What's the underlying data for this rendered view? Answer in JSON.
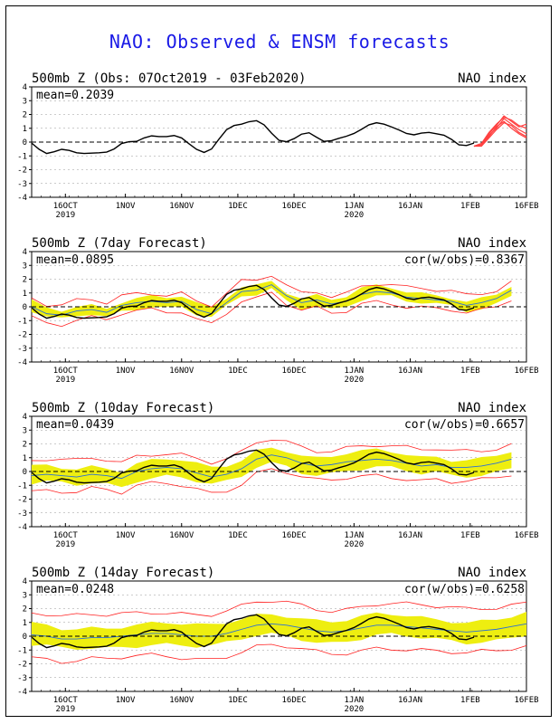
{
  "title": "NAO: Observed & ENSM forecasts",
  "colors": {
    "observed": "#000000",
    "ensemble_spread": "#eeee10",
    "ensemble_mean": "#2a6fd6",
    "ensemble_bounds": "#ff2020",
    "members": "#ff4040"
  },
  "chart_data": [
    {
      "type": "line",
      "panel": "observed",
      "header_left": "500mb Z (Obs: 07Oct2019 - 03Feb2020)",
      "header_right": "NAO index",
      "mean_label": "mean=0.2039",
      "cor_label": "",
      "ylim": [
        -4,
        4
      ],
      "yticks": [
        "4",
        "3",
        "2",
        "1",
        "0",
        "-1",
        "-2",
        "-3",
        "-4"
      ],
      "xlim": [
        0,
        132
      ],
      "xticks": [
        {
          "day": 9,
          "label": "16OCT",
          "sub": "2019"
        },
        {
          "day": 25,
          "label": "1NOV",
          "sub": ""
        },
        {
          "day": 40,
          "label": "16NOV",
          "sub": ""
        },
        {
          "day": 55,
          "label": "1DEC",
          "sub": ""
        },
        {
          "day": 70,
          "label": "16DEC",
          "sub": ""
        },
        {
          "day": 86,
          "label": "1JAN",
          "sub": "2020"
        },
        {
          "day": 101,
          "label": "16JAN",
          "sub": ""
        },
        {
          "day": 117,
          "label": "1FEB",
          "sub": ""
        },
        {
          "day": 132,
          "label": "16FEB",
          "sub": ""
        }
      ],
      "observed": {
        "x": [
          0,
          2,
          4,
          6,
          8,
          10,
          12,
          14,
          16,
          18,
          20,
          22,
          24,
          26,
          28,
          30,
          32,
          34,
          36,
          38,
          40,
          42,
          44,
          46,
          48,
          50,
          52,
          54,
          56,
          58,
          60,
          62,
          64,
          66,
          68,
          70,
          72,
          74,
          76,
          78,
          80,
          82,
          84,
          86,
          88,
          90,
          92,
          94,
          96,
          98,
          100,
          102,
          104,
          106,
          108,
          110,
          112,
          114,
          116,
          118
        ],
        "y": [
          0.1,
          -0.6,
          -1.0,
          -0.7,
          -0.4,
          -0.6,
          -0.8,
          -0.9,
          -0.7,
          -0.9,
          -0.6,
          -0.8,
          0.2,
          0.0,
          -0.1,
          0.4,
          0.5,
          0.4,
          0.3,
          0.6,
          0.4,
          -0.2,
          -0.5,
          -0.9,
          -0.7,
          0.3,
          1.0,
          1.3,
          1.2,
          1.5,
          1.7,
          1.3,
          0.7,
          -0.1,
          0.0,
          0.2,
          0.6,
          0.9,
          0.3,
          -0.1,
          0.1,
          0.3,
          0.4,
          0.6,
          0.9,
          1.3,
          1.5,
          1.3,
          1.1,
          0.9,
          0.6,
          0.4,
          0.7,
          0.8,
          0.5,
          0.6,
          0.3,
          -0.4,
          -0.3,
          0.0
        ]
      },
      "members": [
        {
          "x": [
            118,
            120,
            122,
            124,
            126,
            128,
            130,
            132
          ],
          "y": [
            -0.3,
            -0.2,
            0.5,
            1.0,
            1.7,
            1.3,
            0.9,
            0.6
          ]
        },
        {
          "x": [
            118,
            120,
            122,
            124,
            126,
            128,
            130,
            132
          ],
          "y": [
            -0.3,
            -0.1,
            0.7,
            1.3,
            1.8,
            1.6,
            1.2,
            1.0
          ]
        },
        {
          "x": [
            118,
            120,
            122,
            124,
            126,
            128,
            130,
            132
          ],
          "y": [
            -0.3,
            -0.2,
            0.4,
            1.1,
            1.5,
            1.0,
            0.6,
            0.3
          ]
        },
        {
          "x": [
            118,
            120,
            122,
            124,
            126,
            128,
            130,
            132
          ],
          "y": [
            -0.3,
            -0.3,
            0.3,
            0.9,
            1.4,
            1.2,
            0.7,
            0.4
          ]
        },
        {
          "x": [
            118,
            120,
            122,
            124,
            126,
            128,
            130,
            132
          ],
          "y": [
            -0.3,
            -0.1,
            0.6,
            1.2,
            1.9,
            1.5,
            1.1,
            1.3
          ]
        }
      ]
    },
    {
      "type": "line",
      "panel": "forecast_7day",
      "header_left": "500mb Z (7day Forecast)",
      "header_right": "NAO index",
      "mean_label": "mean=0.0895",
      "cor_label": "cor(w/obs)=0.8367",
      "ylim": [
        -4,
        4
      ],
      "yticks": [
        "4",
        "3",
        "2",
        "1",
        "0",
        "-1",
        "-2",
        "-3",
        "-4"
      ],
      "xlim": [
        0,
        132
      ],
      "xticks": [
        {
          "day": 9,
          "label": "16OCT",
          "sub": "2019"
        },
        {
          "day": 25,
          "label": "1NOV",
          "sub": ""
        },
        {
          "day": 40,
          "label": "16NOV",
          "sub": ""
        },
        {
          "day": 55,
          "label": "1DEC",
          "sub": ""
        },
        {
          "day": 70,
          "label": "16DEC",
          "sub": ""
        },
        {
          "day": 86,
          "label": "1JAN",
          "sub": "2020"
        },
        {
          "day": 101,
          "label": "16JAN",
          "sub": ""
        },
        {
          "day": 117,
          "label": "1FEB",
          "sub": ""
        },
        {
          "day": 132,
          "label": "16FEB",
          "sub": ""
        }
      ],
      "observed_end": 119,
      "forecast": {
        "x": [
          0,
          4,
          8,
          12,
          16,
          20,
          24,
          28,
          32,
          36,
          40,
          44,
          48,
          52,
          56,
          60,
          64,
          68,
          72,
          76,
          80,
          84,
          88,
          92,
          96,
          100,
          104,
          108,
          112,
          116,
          120,
          124,
          128
        ],
        "mean": [
          0.0,
          -0.5,
          -0.6,
          -0.3,
          -0.2,
          -0.4,
          0.1,
          0.3,
          0.4,
          0.3,
          0.4,
          -0.2,
          -0.5,
          0.3,
          1.1,
          1.2,
          1.6,
          0.8,
          0.3,
          0.5,
          0.2,
          0.4,
          0.9,
          1.1,
          1.0,
          0.7,
          0.6,
          0.5,
          0.4,
          0.1,
          0.3,
          0.6,
          1.2
        ],
        "spread": 0.35,
        "bound": 0.65
      }
    },
    {
      "type": "line",
      "panel": "forecast_10day",
      "header_left": "500mb Z (10day Forecast)",
      "header_right": "NAO index",
      "mean_label": "mean=0.0439",
      "cor_label": "cor(w/obs)=0.6657",
      "ylim": [
        -4,
        4
      ],
      "yticks": [
        "4",
        "3",
        "2",
        "1",
        "0",
        "-1",
        "-2",
        "-3",
        "-4"
      ],
      "xlim": [
        0,
        132
      ],
      "xticks": [
        {
          "day": 9,
          "label": "16OCT",
          "sub": "2019"
        },
        {
          "day": 25,
          "label": "1NOV",
          "sub": ""
        },
        {
          "day": 40,
          "label": "16NOV",
          "sub": ""
        },
        {
          "day": 55,
          "label": "1DEC",
          "sub": ""
        },
        {
          "day": 70,
          "label": "16DEC",
          "sub": ""
        },
        {
          "day": 86,
          "label": "1JAN",
          "sub": "2020"
        },
        {
          "day": 101,
          "label": "16JAN",
          "sub": ""
        },
        {
          "day": 117,
          "label": "1FEB",
          "sub": ""
        },
        {
          "day": 132,
          "label": "16FEB",
          "sub": ""
        }
      ],
      "observed_end": 119,
      "forecast": {
        "x": [
          0,
          4,
          8,
          12,
          16,
          20,
          24,
          28,
          32,
          36,
          40,
          44,
          48,
          52,
          56,
          60,
          64,
          68,
          72,
          76,
          80,
          84,
          88,
          92,
          96,
          100,
          104,
          108,
          112,
          116,
          120,
          124,
          128
        ],
        "mean": [
          -0.3,
          -0.2,
          -0.3,
          -0.4,
          -0.2,
          -0.3,
          -0.5,
          0.0,
          0.2,
          0.3,
          0.2,
          -0.1,
          -0.4,
          -0.2,
          0.2,
          0.9,
          1.2,
          1.0,
          0.6,
          0.4,
          0.5,
          0.7,
          0.8,
          0.9,
          0.8,
          0.6,
          0.4,
          0.5,
          0.3,
          0.3,
          0.4,
          0.6,
          0.9
        ],
        "spread": 0.6,
        "bound": 1.1
      }
    },
    {
      "type": "line",
      "panel": "forecast_14day",
      "header_left": "500mb Z (14day Forecast)",
      "header_right": "NAO index",
      "mean_label": "mean=0.0248",
      "cor_label": "cor(w/obs)=0.6258",
      "ylim": [
        -4,
        4
      ],
      "yticks": [
        "4",
        "3",
        "2",
        "1",
        "0",
        "-1",
        "-2",
        "-3",
        "-4"
      ],
      "xlim": [
        0,
        132
      ],
      "xticks": [
        {
          "day": 9,
          "label": "16OCT",
          "sub": "2019"
        },
        {
          "day": 25,
          "label": "1NOV",
          "sub": ""
        },
        {
          "day": 40,
          "label": "16NOV",
          "sub": ""
        },
        {
          "day": 55,
          "label": "1DEC",
          "sub": ""
        },
        {
          "day": 70,
          "label": "16DEC",
          "sub": ""
        },
        {
          "day": 86,
          "label": "1JAN",
          "sub": "2020"
        },
        {
          "day": 101,
          "label": "16JAN",
          "sub": ""
        },
        {
          "day": 117,
          "label": "1FEB",
          "sub": ""
        },
        {
          "day": 132,
          "label": "16FEB",
          "sub": ""
        }
      ],
      "observed_end": 119,
      "forecast": {
        "x": [
          0,
          4,
          8,
          12,
          16,
          20,
          24,
          28,
          32,
          36,
          40,
          44,
          48,
          52,
          56,
          60,
          64,
          68,
          72,
          76,
          80,
          84,
          88,
          92,
          96,
          100,
          104,
          108,
          112,
          116,
          120,
          124,
          128,
          132
        ],
        "mean": [
          0.1,
          0.0,
          -0.2,
          -0.2,
          -0.1,
          -0.1,
          0.0,
          0.1,
          0.2,
          0.2,
          0.1,
          0.0,
          0.0,
          0.2,
          0.5,
          0.8,
          0.9,
          0.8,
          0.6,
          0.4,
          0.3,
          0.4,
          0.6,
          0.8,
          0.8,
          0.7,
          0.6,
          0.5,
          0.4,
          0.3,
          0.4,
          0.5,
          0.7,
          0.9
        ],
        "spread": 0.75,
        "bound": 1.6
      }
    }
  ]
}
